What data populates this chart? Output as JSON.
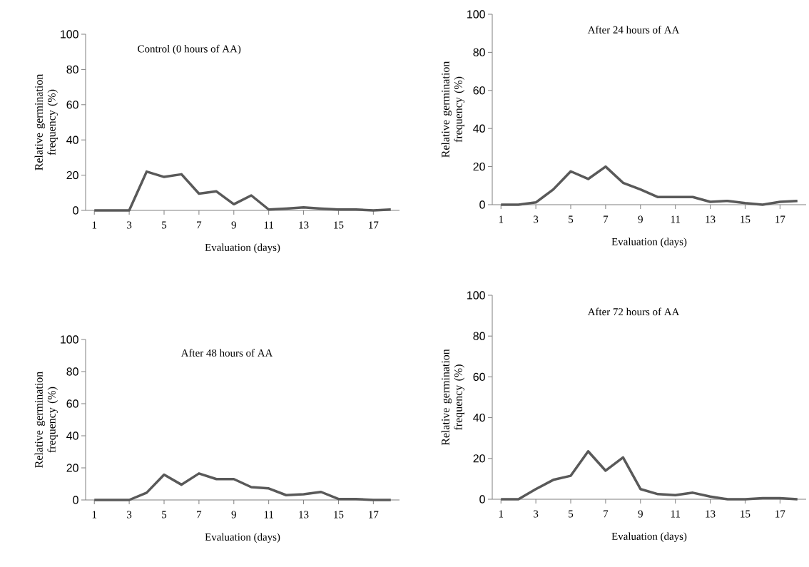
{
  "chart_data": [
    {
      "type": "line",
      "title": "Control (0 hours of AA)",
      "xlabel": "Evaluation (days)",
      "ylabel": "Relative germination frequency (%)",
      "x": [
        1,
        2,
        3,
        4,
        5,
        6,
        7,
        8,
        9,
        10,
        11,
        12,
        13,
        14,
        15,
        16,
        17,
        18
      ],
      "values": [
        0,
        0,
        0,
        22,
        19,
        20.5,
        9.5,
        10.8,
        3.5,
        8.5,
        0.5,
        1,
        1.7,
        1,
        0.5,
        0.5,
        0,
        0.5
      ],
      "color": "#595959",
      "marker": "none",
      "xlim": [
        0.5,
        18.5
      ],
      "xticks": [
        1,
        3,
        5,
        7,
        9,
        11,
        13,
        15,
        17
      ],
      "ylim": [
        0,
        100
      ],
      "yticks": [
        0,
        20,
        40,
        60,
        80,
        100
      ]
    },
    {
      "type": "line",
      "title": "After 24 hours of AA",
      "xlabel": "Evaluation (days)",
      "ylabel": "Relative germination frequency (%)",
      "x": [
        1,
        2,
        3,
        4,
        5,
        6,
        7,
        8,
        9,
        10,
        11,
        12,
        13,
        14,
        15,
        16,
        17,
        18
      ],
      "values": [
        0,
        0,
        1.2,
        8,
        17.5,
        13.5,
        20,
        11.5,
        8,
        4,
        4,
        4,
        1.5,
        2,
        0.8,
        0,
        1.5,
        2
      ],
      "color": "#595959",
      "marker": "none",
      "xlim": [
        0.5,
        18.5
      ],
      "xticks": [
        1,
        3,
        5,
        7,
        9,
        11,
        13,
        15,
        17
      ],
      "ylim": [
        0,
        100
      ],
      "yticks": [
        0,
        20,
        40,
        60,
        80,
        100
      ]
    },
    {
      "type": "line",
      "title": "After  48 hours of AA",
      "xlabel": "Evaluation (days)",
      "ylabel": "Relative germination frequency (%)",
      "x": [
        1,
        2,
        3,
        4,
        5,
        6,
        7,
        8,
        9,
        10,
        11,
        12,
        13,
        14,
        15,
        16,
        17,
        18
      ],
      "values": [
        0,
        0,
        0,
        4.5,
        15.8,
        9.5,
        16.5,
        13,
        13,
        8,
        7.2,
        3,
        3.6,
        5,
        0.6,
        0.6,
        0,
        0
      ],
      "color": "#595959",
      "marker": "none",
      "xlim": [
        0.5,
        18.5
      ],
      "xticks": [
        1,
        3,
        5,
        7,
        9,
        11,
        13,
        15,
        17
      ],
      "ylim": [
        0,
        100
      ],
      "yticks": [
        0,
        20,
        40,
        60,
        80,
        100
      ]
    },
    {
      "type": "line",
      "title": "After 72 hours of AA",
      "xlabel": "Evaluation (days)",
      "ylabel": "Relative germination frequency (%)",
      "x": [
        1,
        2,
        3,
        4,
        5,
        6,
        7,
        8,
        9,
        10,
        11,
        12,
        13,
        14,
        15,
        16,
        17,
        18
      ],
      "values": [
        0,
        0,
        5,
        9.5,
        11.5,
        23.5,
        14,
        20.5,
        5,
        2.5,
        2,
        3.2,
        1.3,
        0,
        0,
        0.5,
        0.5,
        0
      ],
      "color": "#595959",
      "marker": "none",
      "xlim": [
        0.5,
        18.5
      ],
      "xticks": [
        1,
        3,
        5,
        7,
        9,
        11,
        13,
        15,
        17
      ],
      "ylim": [
        0,
        100
      ],
      "yticks": [
        0,
        20,
        40,
        60,
        80,
        100
      ]
    }
  ]
}
